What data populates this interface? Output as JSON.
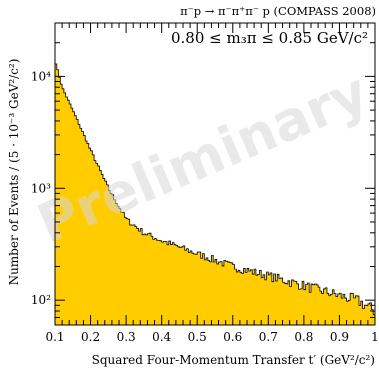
{
  "header": {
    "reaction": "π⁻p → π⁻π⁺π⁻ p (COMPASS 2008)",
    "mass_bin": "0.80 ≤ m₃π ≤ 0.85 GeV/c²"
  },
  "watermark": "Preliminary",
  "colors": {
    "fill": "#ffcc00",
    "outline": "#000000",
    "watermark": "#d8d8d8"
  },
  "chart_data": {
    "type": "bar",
    "subtype": "histogram",
    "xlabel": "Squared Four-Momentum Transfer t′ (GeV²/c²)",
    "ylabel": "Number of Events / (5 · 10⁻³ GeV²/c²)",
    "xlim": [
      0.1,
      1.0
    ],
    "ylim": [
      60,
      30000
    ],
    "yscale": "log",
    "xticks": [
      "0.1",
      "0.2",
      "0.3",
      "0.4",
      "0.5",
      "0.6",
      "0.7",
      "0.8",
      "0.9",
      "1"
    ],
    "yticks": [
      {
        "value": 100,
        "label": "10²"
      },
      {
        "value": 1000,
        "label": "10³"
      },
      {
        "value": 10000,
        "label": "10⁴"
      }
    ],
    "bin_width": 0.005,
    "series_points": {
      "x": [
        0.1,
        0.12,
        0.15,
        0.2,
        0.25,
        0.3,
        0.35,
        0.4,
        0.5,
        0.6,
        0.7,
        0.8,
        0.9,
        0.95,
        1.0
      ],
      "y": [
        14000,
        8000,
        5000,
        2200,
        1000,
        530,
        400,
        340,
        260,
        200,
        165,
        135,
        110,
        100,
        80
      ]
    }
  }
}
